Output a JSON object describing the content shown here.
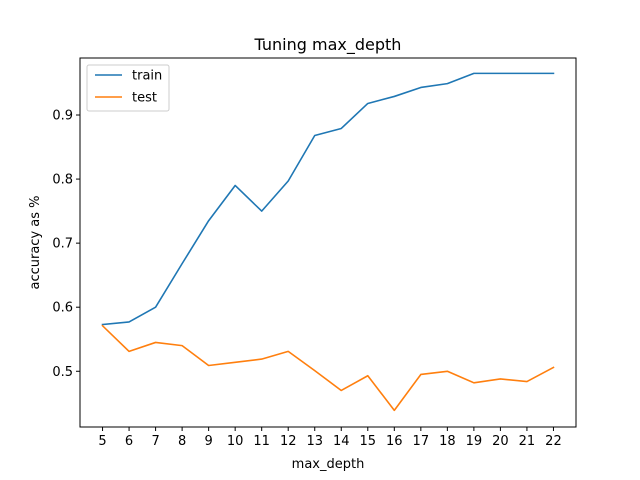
{
  "chart_data": {
    "type": "line",
    "title": "Tuning max_depth",
    "xlabel": "max_depth",
    "ylabel": "accuracy as %",
    "x": [
      5,
      6,
      7,
      8,
      9,
      10,
      11,
      12,
      13,
      14,
      15,
      16,
      17,
      18,
      19,
      20,
      21,
      22
    ],
    "xticks": [
      "5",
      "6",
      "7",
      "8",
      "9",
      "10",
      "11",
      "12",
      "13",
      "14",
      "15",
      "16",
      "17",
      "18",
      "19",
      "20",
      "21",
      "22"
    ],
    "yticks": [
      0.5,
      0.6,
      0.7,
      0.8,
      0.9
    ],
    "ytick_labels": [
      "0.5",
      "0.6",
      "0.7",
      "0.8",
      "0.9"
    ],
    "xlim": [
      4.15,
      22.85
    ],
    "ylim": [
      0.413,
      0.989
    ],
    "grid": false,
    "legend_position": "top-left",
    "series": [
      {
        "name": "train",
        "color": "#1f77b4",
        "values": [
          0.573,
          0.577,
          0.6,
          0.668,
          0.735,
          0.79,
          0.75,
          0.797,
          0.868,
          0.879,
          0.918,
          0.929,
          0.943,
          0.949,
          0.965,
          0.965,
          0.965,
          0.965
        ]
      },
      {
        "name": "test",
        "color": "#ff7f0e",
        "values": [
          0.571,
          0.531,
          0.545,
          0.54,
          0.509,
          0.514,
          0.519,
          0.531,
          0.501,
          0.47,
          0.493,
          0.439,
          0.495,
          0.5,
          0.482,
          0.488,
          0.484,
          0.506
        ]
      }
    ]
  }
}
